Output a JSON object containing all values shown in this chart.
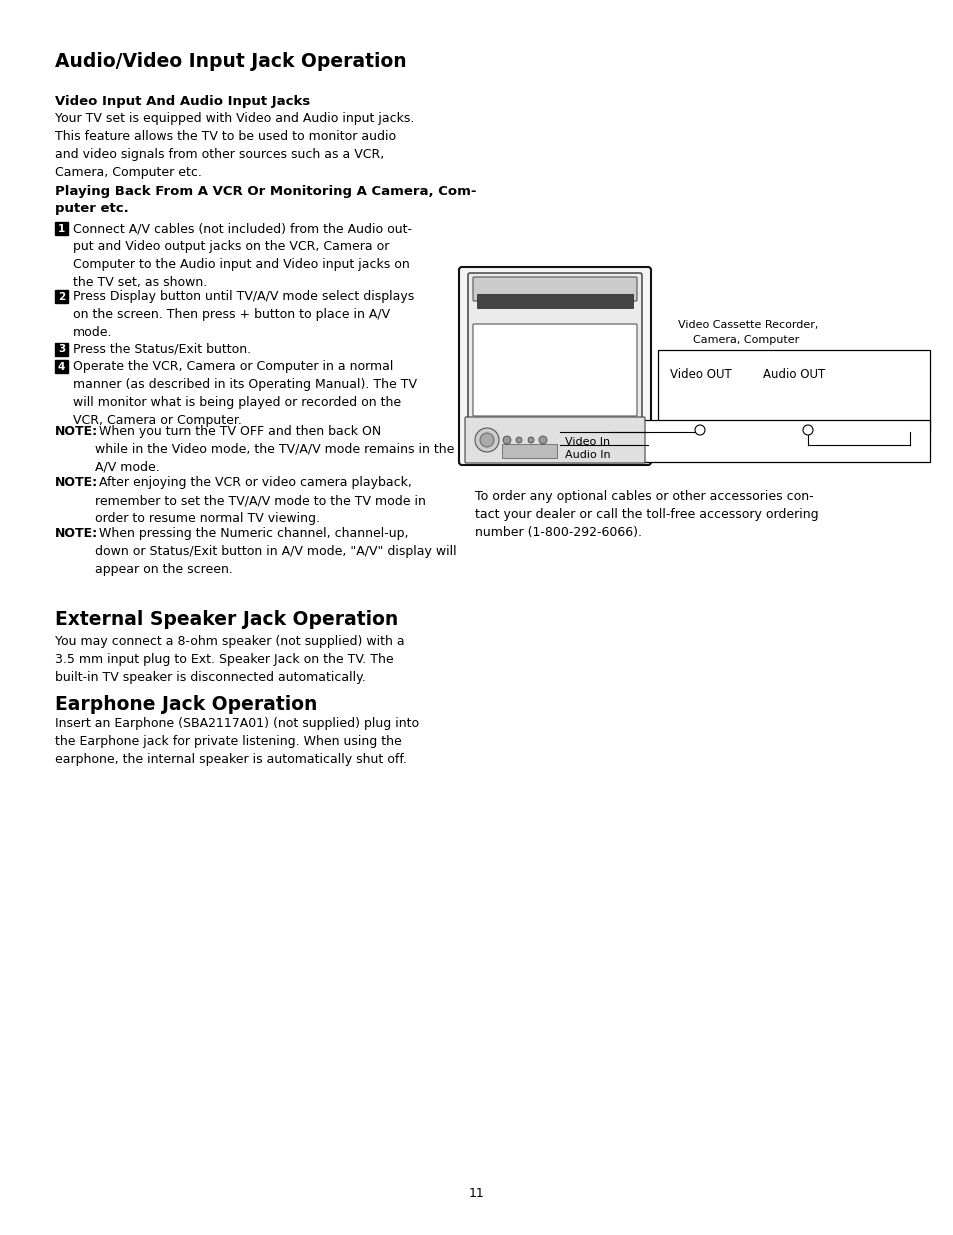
{
  "bg_color": "#ffffff",
  "text_color": "#000000",
  "page_number": "11",
  "lm": 0.058,
  "section1_title": "Audio/Video Input Jack Operation",
  "subsection1_title": "Video Input And Audio Input Jacks",
  "subsection1_body": "Your TV set is equipped with Video and Audio input jacks.\nThis feature allows the TV to be used to monitor audio\nand video signals from other sources such as a VCR,\nCamera, Computer etc.",
  "subsection2_title_line1": "Playing Back From A VCR Or Monitoring A Camera, Com-",
  "subsection2_title_line2": "puter etc.",
  "step1": "Connect A/V cables (not included) from the Audio out-\nput and Video output jacks on the VCR, Camera or\nComputer to the Audio input and Video input jacks on\nthe TV set, as shown.",
  "step2": "Press Display button until TV/A/V mode select displays\non the screen. Then press + button to place in A/V\nmode.",
  "step3": "Press the Status/Exit button.",
  "step4": "Operate the VCR, Camera or Computer in a normal\nmanner (as described in its Operating Manual). The TV\nwill monitor what is being played or recorded on the\nVCR, Camera or Computer.",
  "note1_bold": "NOTE:",
  "note1_rest": " When you turn the TV OFF and then back ON\nwhile in the Video mode, the TV/A/V mode remains in the\nA/V mode.",
  "note2_bold": "NOTE:",
  "note2_rest": " After enjoying the VCR or video camera playback,\nremember to set the TV/A/V mode to the TV mode in\norder to resume normal TV viewing.",
  "note3_bold": "NOTE:",
  "note3_rest": " When pressing the Numeric channel, channel-up,\ndown or Status/Exit button in A/V mode, \"A/V\" display will\nappear on the screen.",
  "diagram_caption1": "Video Cassette Recorder,",
  "diagram_caption2": "Camera, Computer",
  "diagram_label_video_out": "Video OUT",
  "diagram_label_audio_out": "Audio OUT",
  "diagram_label_video_in": "Video In",
  "diagram_label_audio_in": "Audio In",
  "diagram_note": "To order any optional cables or other accessories con-\ntact your dealer or call the toll-free accessory ordering\nnumber (1-800-292-6066).",
  "section2_title": "External Speaker Jack Operation",
  "section2_body": "You may connect a 8-ohm speaker (not supplied) with a\n3.5 mm input plug to Ext. Speaker Jack on the TV. The\nbuilt-in TV speaker is disconnected automatically.",
  "section3_title": "Earphone Jack Operation",
  "section3_body": "Insert an Earphone (SBA2117A01) (not supplied) plug into\nthe Earphone jack for private listening. When using the\nearphone, the internal speaker is automatically shut off."
}
